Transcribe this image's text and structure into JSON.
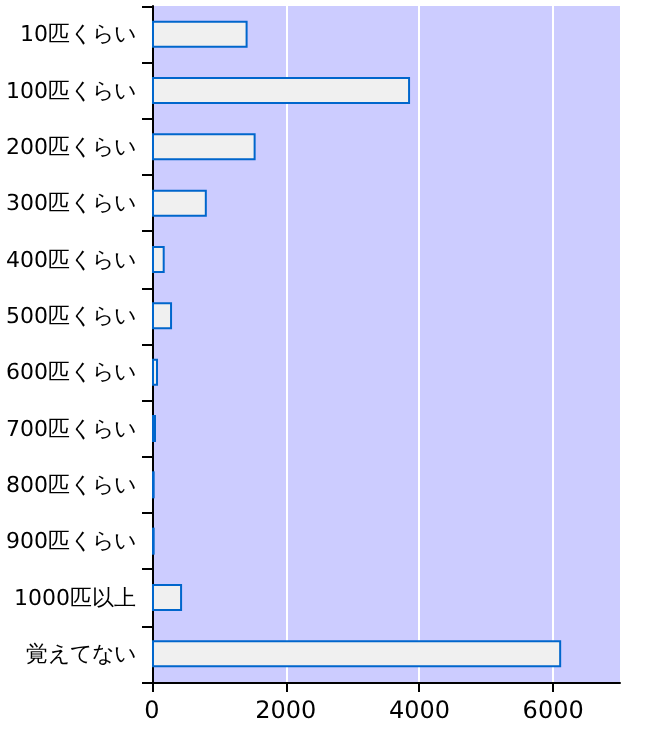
{
  "chart_data": {
    "type": "bar",
    "orientation": "horizontal",
    "categories": [
      "10匹くらい",
      "100匹くらい",
      "200匹くらい",
      "300匹くらい",
      "400匹くらい",
      "500匹くらい",
      "600匹くらい",
      "700匹くらい",
      "800匹くらい",
      "900匹くらい",
      "1000匹以上",
      "覚えてない"
    ],
    "values": [
      1430,
      3860,
      1550,
      820,
      190,
      300,
      90,
      60,
      40,
      40,
      450,
      6120
    ],
    "color": "#f0f0f0",
    "xlim": [
      0,
      7000
    ],
    "xticks": [
      0,
      2000,
      4000,
      6000
    ],
    "grid": "x"
  }
}
